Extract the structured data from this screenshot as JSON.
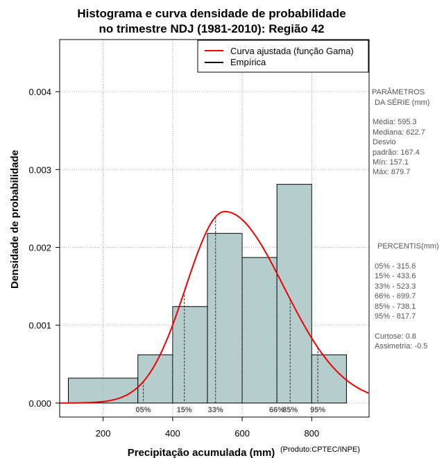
{
  "chart_data": {
    "type": "histogram",
    "title_line1": "Histograma e curva densidade de probabilidade",
    "title_line2": "no trimestre NDJ (1981-2010): Região 42",
    "xlabel": "Precipitação acumulada (mm)",
    "ylabel": "Densidade de probabilidade",
    "credit": "(Produto:CPTEC/INPE)",
    "xlim": [
      75,
      965
    ],
    "ylim": [
      -0.00018,
      0.00467
    ],
    "x_ticks": [
      200,
      400,
      600,
      800
    ],
    "x_tick_labels": [
      "200",
      "400",
      "600",
      "800"
    ],
    "y_ticks": [
      0,
      0.001,
      0.002,
      0.003,
      0.004
    ],
    "y_tick_labels": [
      "0.000",
      "0.001",
      "0.002",
      "0.003",
      "0.004"
    ],
    "grid": true,
    "bars": [
      {
        "start": 100,
        "end": 300,
        "density": 0.00032
      },
      {
        "start": 300,
        "end": 400,
        "density": 0.00062
      },
      {
        "start": 400,
        "end": 500,
        "density": 0.00124
      },
      {
        "start": 500,
        "end": 600,
        "density": 0.00218
      },
      {
        "start": 600,
        "end": 700,
        "density": 0.00187
      },
      {
        "start": 700,
        "end": 800,
        "density": 0.00281
      },
      {
        "start": 800,
        "end": 900,
        "density": 0.00062
      }
    ],
    "bar_color": "#b5cdcd",
    "curve_color": "#ee0000",
    "gamma_fit": {
      "mode": 550,
      "peak": 0.00246,
      "left_sd": 112,
      "right_sd": 170
    },
    "percentiles": [
      {
        "label": "05%",
        "value": 315.6
      },
      {
        "label": "15%",
        "value": 433.6
      },
      {
        "label": "33%",
        "value": 523.3
      },
      {
        "label": "66%",
        "value": 699.7
      },
      {
        "label": "85%",
        "value": 738.1
      },
      {
        "label": "95%",
        "value": 817.7
      }
    ],
    "legend": [
      {
        "label": "Curva ajustada (função Gama)",
        "color": "#ee0000"
      },
      {
        "label": "Empírica",
        "color": "#000000"
      }
    ],
    "legend_position": "top-right"
  },
  "side_panel": {
    "parametros_title_1": "PARÂMETROS",
    "parametros_title_2": "DA SÉRIE (mm)",
    "media": "Média:  595.3",
    "mediana": "Mediana:  622.7",
    "desvio_1": "Desvio",
    "desvio_2": "padrão:  167.4",
    "min": "Mín:  157.1",
    "max": "Máx:  879.7",
    "percentis_title": "PERCENTIS(mm)",
    "p05": "05% -   315.6",
    "p15": "15% -   433.6",
    "p33": "33% -   523.3",
    "p66": "66% -   699.7",
    "p85": "85% -   738.1",
    "p95": "95% -   817.7",
    "curtose": "Curtose:  0.8",
    "assimetria": "Assimetria:  -0.5"
  }
}
